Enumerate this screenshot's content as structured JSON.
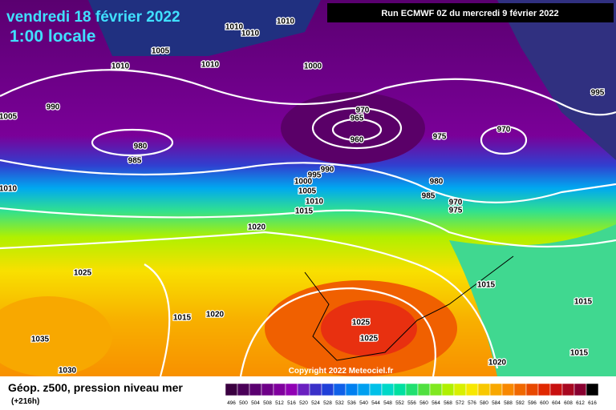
{
  "header": {
    "title": "vendredi 18 février 2022",
    "time": "1:00 locale",
    "run": "Run ECMWF 0Z du mercredi 9 février 2022"
  },
  "map": {
    "isobar_labels": [
      "1010",
      "1010",
      "1010",
      "1005",
      "1010",
      "1010",
      "1000",
      "995",
      "990",
      "1005",
      "970",
      "965",
      "960",
      "975",
      "970",
      "980",
      "985",
      "990",
      "995",
      "1000",
      "1005",
      "1010",
      "1015",
      "980",
      "985",
      "970",
      "975",
      "1010",
      "1020",
      "1025",
      "1015",
      "1015",
      "1015",
      "1020",
      "1025",
      "1025",
      "1035",
      "1015",
      "1020",
      "1030"
    ],
    "copyright": "Copyright 2022 Meteociel.fr"
  },
  "footer": {
    "caption": "Géop. z500, pression niveau mer",
    "lead": "(+216h)"
  },
  "scale": {
    "labels": [
      496,
      500,
      504,
      508,
      512,
      516,
      520,
      524,
      528,
      532,
      536,
      540,
      544,
      548,
      552,
      556,
      560,
      564,
      568,
      572,
      576,
      580,
      584,
      588,
      592,
      596,
      600,
      604,
      608,
      612,
      616
    ],
    "colors": [
      "#3a0040",
      "#4a0058",
      "#5a0070",
      "#6e0088",
      "#80009e",
      "#9000b4",
      "#6a20c0",
      "#3a30c8",
      "#2040d8",
      "#1060e8",
      "#0080f0",
      "#00a0f0",
      "#00c0e8",
      "#00d8c8",
      "#00e0a0",
      "#20e070",
      "#50e040",
      "#80e820",
      "#b0f000",
      "#d8f000",
      "#f8e800",
      "#f8c800",
      "#f8a800",
      "#f88800",
      "#f06800",
      "#e84800",
      "#e02800",
      "#c81010",
      "#a80820",
      "#880030",
      "#000000"
    ]
  }
}
